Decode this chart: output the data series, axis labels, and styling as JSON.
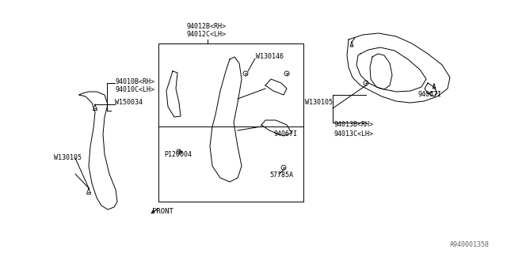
{
  "bg_color": "#ffffff",
  "line_color": "#000000",
  "diagram_id": "A940001358",
  "labels": {
    "part_94012B_RH": "94012B<RH>",
    "part_94012C_LH": "94012C<LH>",
    "part_W130146": "W130146",
    "part_94067I_center": "94067I",
    "part_P120004": "P120004",
    "part_57785A": "57785A",
    "part_94010B_RH": "94010B<RH>",
    "part_94010C_LH": "94010C<LH>",
    "part_W150034": "W150034",
    "part_W130105_left": "W130105",
    "part_W130105_right": "W130105",
    "part_94013B_RH": "94013B<RH>",
    "part_94013C_LH": "94013C<LH>",
    "part_94067I_right": "94067I",
    "front_label": "FRONT"
  },
  "font_size_label": 6.0,
  "font_size_diagram_id": 6.0
}
